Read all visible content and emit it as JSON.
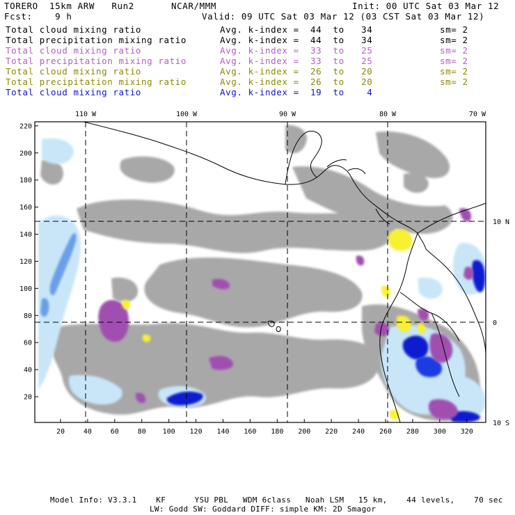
{
  "header": {
    "model": "TORERO  15km ARW   Run2",
    "org": "NCAR/MMM",
    "init": "Init: 00 UTC Sat 03 Mar 12",
    "fcst": "Fcst:    9 h",
    "valid": "Valid: 09 UTC Sat 03 Mar 12 (03 CST Sat 03 Mar 12)"
  },
  "legend": [
    {
      "field": "Total cloud mixing ratio",
      "kindex": "Avg. k-index =  44  to   34",
      "sm": "sm= 2",
      "color": "#000000"
    },
    {
      "field": "Total precipitation mixing ratio",
      "kindex": "Avg. k-index =  44  to   34",
      "sm": "sm= 2",
      "color": "#000000"
    },
    {
      "field": "Total cloud mixing ratio",
      "kindex": "Avg. k-index =  33  to   25",
      "sm": "sm= 2",
      "color": "#b060c0"
    },
    {
      "field": "Total precipitation mixing ratio",
      "kindex": "Avg. k-index =  33  to   25",
      "sm": "sm= 2",
      "color": "#b060c0"
    },
    {
      "field": "Total cloud mixing ratio",
      "kindex": "Avg. k-index =  26  to   20",
      "sm": "sm= 2",
      "color": "#8a8a00"
    },
    {
      "field": "Total precipitation mixing ratio",
      "kindex": "Avg. k-index =  26  to   20",
      "sm": "sm= 2",
      "color": "#8a8a00"
    },
    {
      "field": "Total cloud mixing ratio",
      "kindex": "Avg. k-index =  19  to    4",
      "sm": "",
      "color": "#1010d0"
    }
  ],
  "map": {
    "lon_labels": [
      "110 W",
      "100 W",
      "90 W",
      "80 W",
      "70 W"
    ],
    "lat_labels": [
      "10 N",
      "0",
      "10 S"
    ],
    "y_ticks": [
      "220",
      "200",
      "180",
      "160",
      "140",
      "120",
      "100",
      "80",
      "60",
      "40",
      "20"
    ],
    "x_ticks": [
      "20",
      "40",
      "60",
      "80",
      "100",
      "120",
      "140",
      "160",
      "180",
      "200",
      "220",
      "240",
      "260",
      "280",
      "300",
      "320"
    ],
    "colors": {
      "gray": "#a8a8a8",
      "light_blue": "#c8e6f8",
      "mid_blue": "#6a9ee8",
      "dark_blue": "#0a1ad0",
      "purple": "#a050b0",
      "yellow": "#f8f030"
    }
  },
  "footer": {
    "line1": "Model Info: V3.3.1    KF      YSU PBL   WDM 6class   Noah LSM   15 km,    44 levels,    70 sec",
    "line2": "LW: Godd SW: Goddard DIFF: simple KM: 2D Smagor"
  }
}
